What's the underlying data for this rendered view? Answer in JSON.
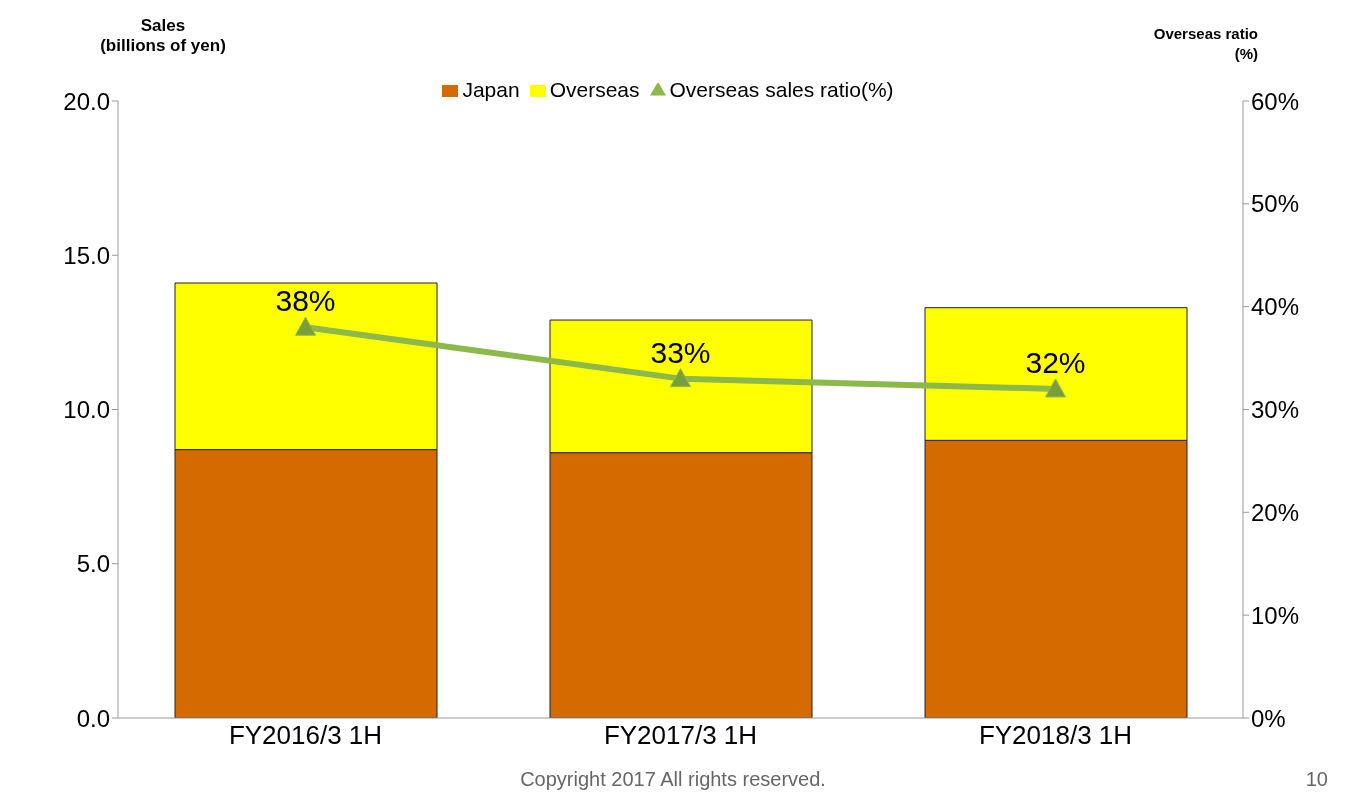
{
  "chart_data": {
    "type": "bar",
    "stacked": true,
    "ylabel": "Sales\n(billions of yen)",
    "y2label": "Overseas ratio\n(%)",
    "categories": [
      "FY2016/3 1H",
      "FY2017/3 1H",
      "FY2018/3 1H"
    ],
    "series": [
      {
        "name": "Japan",
        "color": "#d46a00",
        "values": [
          8.7,
          8.6,
          9.0
        ]
      },
      {
        "name": "Overseas",
        "color": "#ffff00",
        "values": [
          5.4,
          4.3,
          4.3
        ]
      },
      {
        "name": "Overseas sales ratio(%)",
        "type": "line",
        "axis": "y2",
        "color": "#8db84a",
        "marker": "triangle",
        "values": [
          38,
          33,
          32
        ],
        "value_labels": [
          "38%",
          "33%",
          "32%"
        ]
      }
    ],
    "ylim": [
      0,
      20
    ],
    "yticks": [
      {
        "value": 0,
        "label": "0.0"
      },
      {
        "value": 5,
        "label": "5.0"
      },
      {
        "value": 10,
        "label": "10.0"
      },
      {
        "value": 15,
        "label": "15.0"
      },
      {
        "value": 20,
        "label": "20.0"
      }
    ],
    "y2lim": [
      0,
      60
    ],
    "y2ticks": [
      {
        "value": 0,
        "label": "0%"
      },
      {
        "value": 10,
        "label": "10%"
      },
      {
        "value": 20,
        "label": "20%"
      },
      {
        "value": 30,
        "label": "30%"
      },
      {
        "value": 40,
        "label": "40%"
      },
      {
        "value": 50,
        "label": "50%"
      },
      {
        "value": 60,
        "label": "60%"
      }
    ],
    "legend": "top",
    "grid": false,
    "annotations": [
      "Copyright 2017 All rights reserved.",
      "10"
    ]
  }
}
